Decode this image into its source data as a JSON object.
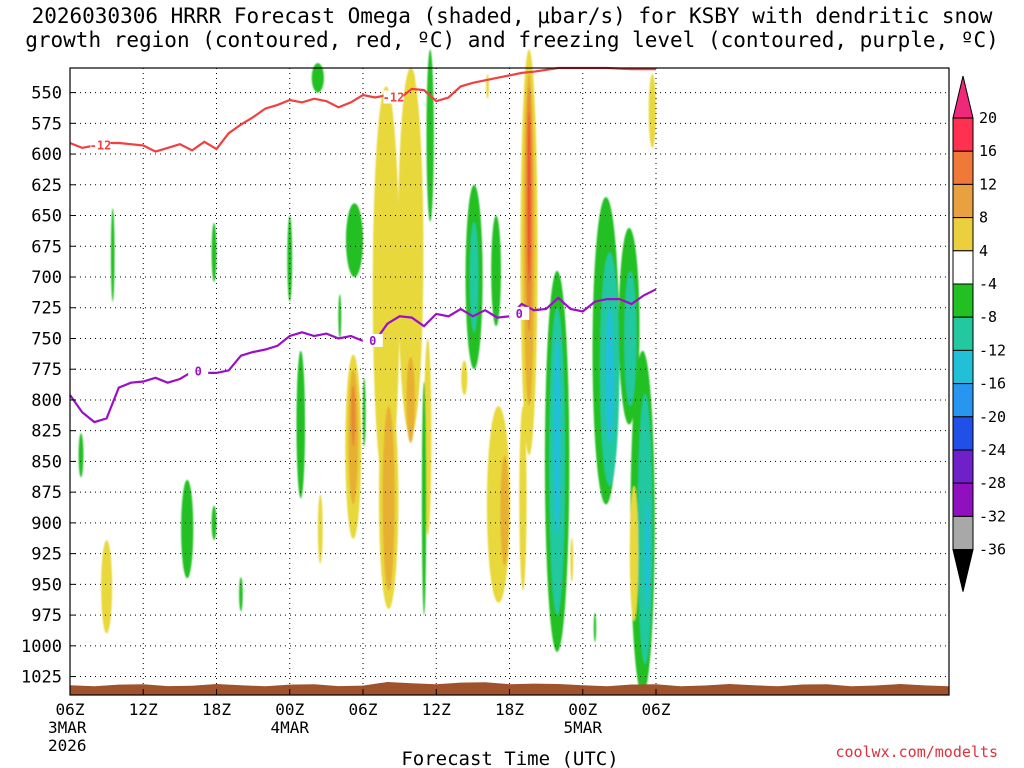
{
  "titles": {
    "line1": "2026030306 HRRR Forecast Omega (shaded, μbar/s) for KSBY with dendritic snow",
    "line2": "growth region (contoured, red, ºC) and freezing level (contoured, purple, ºC)"
  },
  "credit": "coolwx.com/modelts",
  "chart_data": {
    "type": "heatmap",
    "xlabel": "Forecast Time (UTC)",
    "ylabel": "",
    "x_range": [
      0,
      72
    ],
    "y_range": [
      1040,
      530
    ],
    "y_ticks": [
      550,
      575,
      600,
      625,
      650,
      675,
      700,
      725,
      750,
      775,
      800,
      825,
      850,
      875,
      900,
      925,
      950,
      975,
      1000,
      1025
    ],
    "x_ticks": [
      {
        "h": 0,
        "label": "06Z",
        "sub1": "3MAR",
        "sub2": "2026"
      },
      {
        "h": 6,
        "label": "12Z"
      },
      {
        "h": 12,
        "label": "18Z"
      },
      {
        "h": 18,
        "label": "00Z",
        "sub1": "4MAR"
      },
      {
        "h": 24,
        "label": "06Z"
      },
      {
        "h": 30,
        "label": "12Z"
      },
      {
        "h": 36,
        "label": "18Z"
      },
      {
        "h": 42,
        "label": "00Z",
        "sub1": "5MAR"
      },
      {
        "h": 48,
        "label": "06Z"
      }
    ],
    "grid": "dotted",
    "colorbar": {
      "labels": [
        "20",
        "16",
        "12",
        "8",
        "4",
        "-4",
        "-8",
        "-12",
        "-16",
        "-20",
        "-24",
        "-28",
        "-32",
        "-36"
      ],
      "colors": [
        "#ff3050",
        "#f07838",
        "#e8a040",
        "#eccf3c",
        "#ffffff",
        "#22c022",
        "#22c8a0",
        "#22c0d8",
        "#2896f0",
        "#2050e8",
        "#7020c8",
        "#9010c0",
        "#a8a8a8"
      ],
      "top_color": "#f0287a",
      "bottom_color": "#000000"
    },
    "omega_colors": {
      "up4": "#e8d83a",
      "up8": "#e8b030",
      "up12": "#e88a30",
      "up16": "#f05030",
      "dn4": "#22c022",
      "dn8": "#22c8a0",
      "dn12": "#22c0d8"
    },
    "freezing_level_label": "0",
    "dgz_label": "-12",
    "freezing_level_color": "#9a10c8",
    "dgz_color": "#f04040",
    "terrain_color": "#a0522d",
    "freezing_level": [
      [
        0,
        796
      ],
      [
        1,
        810
      ],
      [
        2,
        818
      ],
      [
        3,
        815
      ],
      [
        4,
        790
      ],
      [
        5,
        786
      ],
      [
        6,
        785
      ],
      [
        7,
        782
      ],
      [
        8,
        786
      ],
      [
        9,
        783
      ],
      [
        10,
        777
      ],
      [
        11,
        778
      ],
      [
        12,
        778
      ],
      [
        13,
        776
      ],
      [
        14,
        764
      ],
      [
        15,
        761
      ],
      [
        16,
        759
      ],
      [
        17,
        756
      ],
      [
        18,
        748
      ],
      [
        19,
        745
      ],
      [
        20,
        748
      ],
      [
        21,
        746
      ],
      [
        22,
        750
      ],
      [
        23,
        748
      ],
      [
        24,
        752
      ],
      [
        25,
        752
      ],
      [
        26,
        738
      ],
      [
        27,
        732
      ],
      [
        28,
        733
      ],
      [
        29,
        740
      ],
      [
        30,
        730
      ],
      [
        31,
        732
      ],
      [
        32,
        726
      ],
      [
        33,
        732
      ],
      [
        34,
        727
      ],
      [
        35,
        733
      ],
      [
        36,
        732
      ],
      [
        37,
        722
      ],
      [
        38,
        727
      ],
      [
        39,
        726
      ],
      [
        40,
        717
      ],
      [
        41,
        726
      ],
      [
        42,
        728
      ],
      [
        43,
        720
      ],
      [
        44,
        718
      ],
      [
        45,
        718
      ],
      [
        46,
        722
      ],
      [
        47,
        715
      ],
      [
        48,
        710
      ]
    ],
    "dgz_line": [
      [
        0,
        591
      ],
      [
        1,
        595
      ],
      [
        2,
        593
      ],
      [
        3,
        591
      ],
      [
        4,
        591
      ],
      [
        5,
        592
      ],
      [
        6,
        593
      ],
      [
        7,
        598
      ],
      [
        8,
        595
      ],
      [
        9,
        592
      ],
      [
        10,
        597
      ],
      [
        11,
        590
      ],
      [
        12,
        596
      ],
      [
        13,
        583
      ],
      [
        14,
        576
      ],
      [
        15,
        570
      ],
      [
        16,
        563
      ],
      [
        17,
        560
      ],
      [
        18,
        556
      ],
      [
        19,
        558
      ],
      [
        20,
        555
      ],
      [
        21,
        557
      ],
      [
        22,
        562
      ],
      [
        23,
        558
      ],
      [
        24,
        552
      ],
      [
        25,
        554
      ],
      [
        26,
        552
      ],
      [
        27,
        555
      ],
      [
        28,
        547
      ],
      [
        29,
        548
      ],
      [
        30,
        557
      ],
      [
        31,
        554
      ],
      [
        32,
        545
      ],
      [
        33,
        542
      ],
      [
        34,
        540
      ],
      [
        35,
        538
      ],
      [
        36,
        536
      ],
      [
        37,
        534
      ],
      [
        38,
        533
      ],
      [
        40,
        530
      ],
      [
        44,
        530
      ],
      [
        46,
        531
      ],
      [
        48,
        531
      ]
    ],
    "terrain_top_hpa": 1032,
    "omega_features": [
      {
        "c": "up4",
        "x": 3,
        "y": 952,
        "rx": 0.45,
        "ry": 38
      },
      {
        "c": "dn4",
        "x": 0.9,
        "y": 845,
        "rx": 0.2,
        "ry": 18
      },
      {
        "c": "dn4",
        "x": 3.5,
        "y": 682,
        "rx": 0.15,
        "ry": 38
      },
      {
        "c": "dn4",
        "x": 9.6,
        "y": 905,
        "rx": 0.5,
        "ry": 40
      },
      {
        "c": "dn4",
        "x": 11.8,
        "y": 680,
        "rx": 0.2,
        "ry": 24
      },
      {
        "c": "dn4",
        "x": 11.8,
        "y": 900,
        "rx": 0.2,
        "ry": 14
      },
      {
        "c": "dn4",
        "x": 14,
        "y": 958,
        "rx": 0.15,
        "ry": 14
      },
      {
        "c": "dn4",
        "x": 18,
        "y": 685,
        "rx": 0.2,
        "ry": 35
      },
      {
        "c": "dn4",
        "x": 18.9,
        "y": 820,
        "rx": 0.35,
        "ry": 60
      },
      {
        "c": "up4",
        "x": 20.5,
        "y": 905,
        "rx": 0.2,
        "ry": 28
      },
      {
        "c": "dn4",
        "x": 20.3,
        "y": 538,
        "rx": 0.5,
        "ry": 12
      },
      {
        "c": "dn4",
        "x": 22.1,
        "y": 732,
        "rx": 0.12,
        "ry": 18
      },
      {
        "c": "dn4",
        "x": 23.3,
        "y": 670,
        "rx": 0.7,
        "ry": 30
      },
      {
        "c": "up4",
        "x": 23.2,
        "y": 838,
        "rx": 0.65,
        "ry": 75
      },
      {
        "c": "up8",
        "x": 23.2,
        "y": 830,
        "rx": 0.4,
        "ry": 55
      },
      {
        "c": "up12",
        "x": 23.2,
        "y": 813,
        "rx": 0.18,
        "ry": 25
      },
      {
        "c": "dn4",
        "x": 24.1,
        "y": 810,
        "rx": 0.12,
        "ry": 28
      },
      {
        "c": "up4",
        "x": 25.9,
        "y": 710,
        "rx": 1.1,
        "ry": 165
      },
      {
        "c": "up4",
        "x": 26.1,
        "y": 880,
        "rx": 0.8,
        "ry": 90
      },
      {
        "c": "up8",
        "x": 26.1,
        "y": 880,
        "rx": 0.5,
        "ry": 75
      },
      {
        "c": "up4",
        "x": 27.9,
        "y": 680,
        "rx": 1.05,
        "ry": 150
      },
      {
        "c": "up8",
        "x": 27.9,
        "y": 800,
        "rx": 0.35,
        "ry": 35
      },
      {
        "c": "up4",
        "x": 28,
        "y": 545,
        "rx": 0.3,
        "ry": 14
      },
      {
        "c": "up4",
        "x": 29.3,
        "y": 830,
        "rx": 0.3,
        "ry": 80
      },
      {
        "c": "dn4",
        "x": 29,
        "y": 880,
        "rx": 0.18,
        "ry": 95
      },
      {
        "c": "dn4",
        "x": 29.5,
        "y": 585,
        "rx": 0.3,
        "ry": 70
      },
      {
        "c": "up4",
        "x": 32.3,
        "y": 782,
        "rx": 0.25,
        "ry": 14
      },
      {
        "c": "dn4",
        "x": 33.1,
        "y": 700,
        "rx": 0.7,
        "ry": 75
      },
      {
        "c": "dn8",
        "x": 33.1,
        "y": 700,
        "rx": 0.35,
        "ry": 45
      },
      {
        "c": "dn4",
        "x": 34.9,
        "y": 695,
        "rx": 0.4,
        "ry": 45
      },
      {
        "c": "up4",
        "x": 34.2,
        "y": 545,
        "rx": 0.12,
        "ry": 10
      },
      {
        "c": "up4",
        "x": 35.1,
        "y": 885,
        "rx": 0.95,
        "ry": 80
      },
      {
        "c": "up8",
        "x": 35.6,
        "y": 890,
        "rx": 0.35,
        "ry": 45
      },
      {
        "c": "up4",
        "x": 37.1,
        "y": 880,
        "rx": 0.3,
        "ry": 75
      },
      {
        "c": "up4",
        "x": 37.6,
        "y": 680,
        "rx": 0.7,
        "ry": 165
      },
      {
        "c": "up8",
        "x": 37.6,
        "y": 670,
        "rx": 0.45,
        "ry": 135
      },
      {
        "c": "up12",
        "x": 37.6,
        "y": 645,
        "rx": 0.28,
        "ry": 100
      },
      {
        "c": "up16",
        "x": 37.6,
        "y": 635,
        "rx": 0.13,
        "ry": 70
      },
      {
        "c": "dn4",
        "x": 39.9,
        "y": 850,
        "rx": 1.0,
        "ry": 155
      },
      {
        "c": "dn8",
        "x": 39.9,
        "y": 850,
        "rx": 0.65,
        "ry": 125
      },
      {
        "c": "dn12",
        "x": 39.9,
        "y": 830,
        "rx": 0.28,
        "ry": 80
      },
      {
        "c": "up4",
        "x": 41.1,
        "y": 930,
        "rx": 0.12,
        "ry": 18
      },
      {
        "c": "dn4",
        "x": 43.9,
        "y": 760,
        "rx": 1.1,
        "ry": 125
      },
      {
        "c": "dn8",
        "x": 44.2,
        "y": 775,
        "rx": 0.8,
        "ry": 95
      },
      {
        "c": "dn12",
        "x": 44.2,
        "y": 780,
        "rx": 0.35,
        "ry": 55
      },
      {
        "c": "dn4",
        "x": 45.8,
        "y": 740,
        "rx": 0.85,
        "ry": 80
      },
      {
        "c": "dn8",
        "x": 45.9,
        "y": 750,
        "rx": 0.5,
        "ry": 55
      },
      {
        "c": "dn4",
        "x": 46.9,
        "y": 900,
        "rx": 1.0,
        "ry": 140
      },
      {
        "c": "dn8",
        "x": 47.1,
        "y": 905,
        "rx": 0.6,
        "ry": 110
      },
      {
        "c": "dn12",
        "x": 47.3,
        "y": 925,
        "rx": 0.2,
        "ry": 45
      },
      {
        "c": "up4",
        "x": 46.2,
        "y": 925,
        "rx": 0.35,
        "ry": 55
      },
      {
        "c": "dn4",
        "x": 43,
        "y": 985,
        "rx": 0.1,
        "ry": 12
      },
      {
        "c": "up4",
        "x": 47.7,
        "y": 565,
        "rx": 0.3,
        "ry": 30
      }
    ]
  }
}
